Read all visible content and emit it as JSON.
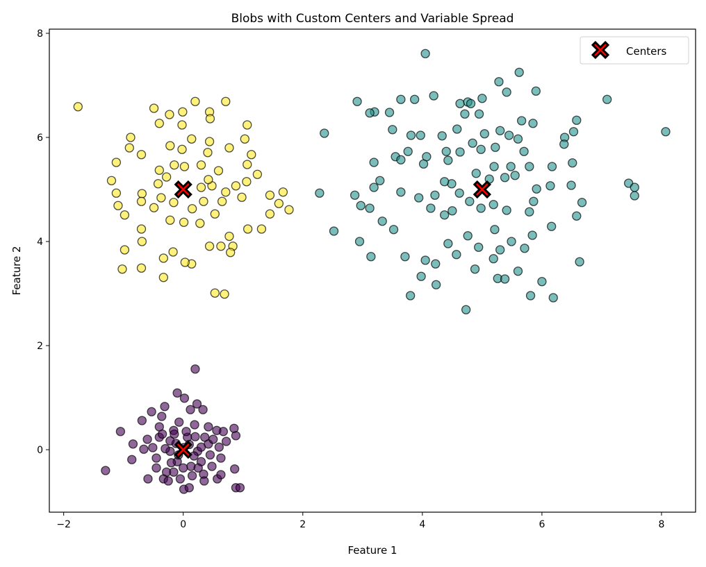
{
  "chart_data": {
    "type": "scatter",
    "title": "Blobs with Custom Centers and Variable Spread",
    "xlabel": "Feature 1",
    "ylabel": "Feature 2",
    "xlim": [
      -2.24,
      8.57
    ],
    "ylim": [
      -1.2,
      8.08
    ],
    "xticks": [
      -2,
      0,
      2,
      4,
      6,
      8
    ],
    "yticks": [
      0,
      2,
      4,
      6,
      8
    ],
    "grid": false,
    "legend": {
      "placement": "top-right",
      "entries": [
        "Centers"
      ]
    },
    "centers": {
      "name": "Centers",
      "color": "#ff0000",
      "edge": "#000000",
      "marker": "X",
      "points": [
        [
          0,
          0
        ],
        [
          5,
          5
        ],
        [
          0,
          5
        ]
      ]
    },
    "clusters": [
      {
        "color": "#440154",
        "points": [
          [
            0.2,
            1.55
          ],
          [
            -0.1,
            1.09
          ],
          [
            0.02,
            0.99
          ],
          [
            -0.31,
            0.83
          ],
          [
            0.23,
            0.88
          ],
          [
            0.12,
            0.77
          ],
          [
            0.33,
            0.77
          ],
          [
            -1.05,
            0.35
          ],
          [
            -0.69,
            0.56
          ],
          [
            -0.53,
            0.73
          ],
          [
            -0.36,
            0.64
          ],
          [
            -1.3,
            -0.4
          ],
          [
            -0.84,
            0.11
          ],
          [
            -0.86,
            -0.19
          ],
          [
            -0.66,
            0.01
          ],
          [
            -0.59,
            -0.56
          ],
          [
            -0.33,
            -0.56
          ],
          [
            0.01,
            -0.76
          ],
          [
            0.1,
            -0.73
          ],
          [
            0.34,
            -0.47
          ],
          [
            0.57,
            -0.56
          ],
          [
            0.63,
            -0.48
          ],
          [
            0.86,
            -0.37
          ],
          [
            0.88,
            -0.73
          ],
          [
            0.95,
            -0.73
          ],
          [
            0.85,
            0.41
          ],
          [
            0.88,
            0.27
          ],
          [
            0.72,
            0.16
          ],
          [
            0.67,
            0.35
          ],
          [
            0.56,
            0.37
          ],
          [
            -0.16,
            0.37
          ],
          [
            -0.4,
            0.24
          ],
          [
            -0.45,
            -0.16
          ],
          [
            -0.28,
            -0.43
          ],
          [
            0.3,
            -0.23
          ],
          [
            0.42,
            0.11
          ],
          [
            0.19,
            0.48
          ],
          [
            -0.07,
            0.53
          ],
          [
            -0.22,
            -0.03
          ],
          [
            0.24,
            -0.03
          ],
          [
            0.07,
            0.24
          ],
          [
            -0.1,
            -0.23
          ],
          [
            0.13,
            -0.32
          ],
          [
            0.42,
            0.44
          ],
          [
            -0.4,
            0.44
          ],
          [
            -0.05,
            -0.56
          ],
          [
            0.48,
            -0.32
          ],
          [
            -0.51,
            0.04
          ],
          [
            0.63,
            -0.16
          ],
          [
            -0.22,
            0.17
          ],
          [
            0.36,
            0.24
          ],
          [
            0.01,
            0.04
          ],
          [
            -0.16,
            -0.43
          ],
          [
            0.1,
            0.1
          ],
          [
            -0.12,
            0.12
          ],
          [
            0.18,
            -0.12
          ],
          [
            -0.08,
            -0.1
          ],
          [
            0.3,
            0.05
          ],
          [
            -0.3,
            0.02
          ],
          [
            0.05,
            0.35
          ],
          [
            0.0,
            -0.35
          ],
          [
            0.2,
            0.25
          ],
          [
            -0.2,
            -0.25
          ],
          [
            0.25,
            -0.35
          ],
          [
            -0.35,
            0.3
          ],
          [
            0.45,
            -0.1
          ],
          [
            -0.45,
            -0.35
          ],
          [
            0.15,
            -0.5
          ],
          [
            -0.15,
            0.3
          ],
          [
            0.5,
            0.2
          ],
          [
            -0.6,
            0.2
          ],
          [
            0.6,
            0.05
          ],
          [
            -0.25,
            -0.6
          ],
          [
            0.35,
            -0.6
          ]
        ]
      },
      {
        "color": "#21918c",
        "points": [
          [
            4.05,
            7.61
          ],
          [
            5.62,
            7.25
          ],
          [
            5.28,
            7.07
          ],
          [
            5.41,
            6.87
          ],
          [
            5.9,
            6.89
          ],
          [
            2.91,
            6.69
          ],
          [
            3.64,
            6.73
          ],
          [
            3.87,
            6.73
          ],
          [
            4.19,
            6.8
          ],
          [
            4.63,
            6.65
          ],
          [
            4.76,
            6.68
          ],
          [
            5.0,
            6.75
          ],
          [
            4.81,
            6.65
          ],
          [
            7.09,
            6.73
          ],
          [
            3.2,
            6.49
          ],
          [
            3.45,
            6.48
          ],
          [
            3.5,
            6.15
          ],
          [
            3.12,
            6.47
          ],
          [
            2.36,
            6.08
          ],
          [
            4.71,
            6.45
          ],
          [
            4.95,
            6.45
          ],
          [
            4.58,
            6.16
          ],
          [
            5.66,
            6.32
          ],
          [
            5.85,
            6.27
          ],
          [
            6.58,
            6.33
          ],
          [
            6.53,
            6.11
          ],
          [
            6.38,
            6.0
          ],
          [
            6.37,
            5.87
          ],
          [
            3.81,
            6.04
          ],
          [
            3.97,
            6.04
          ],
          [
            4.33,
            6.03
          ],
          [
            5.3,
            6.13
          ],
          [
            5.45,
            6.04
          ],
          [
            5.6,
            5.97
          ],
          [
            5.7,
            5.73
          ],
          [
            5.04,
            6.07
          ],
          [
            4.84,
            5.89
          ],
          [
            4.98,
            5.77
          ],
          [
            3.76,
            5.73
          ],
          [
            3.55,
            5.63
          ],
          [
            3.19,
            5.52
          ],
          [
            3.64,
            5.57
          ],
          [
            4.07,
            5.63
          ],
          [
            4.02,
            5.49
          ],
          [
            4.4,
            5.73
          ],
          [
            4.63,
            5.72
          ],
          [
            4.43,
            5.56
          ],
          [
            5.22,
            5.81
          ],
          [
            5.48,
            5.44
          ],
          [
            5.55,
            5.27
          ],
          [
            5.79,
            5.44
          ],
          [
            6.17,
            5.44
          ],
          [
            6.51,
            5.51
          ],
          [
            5.2,
            5.44
          ],
          [
            5.38,
            5.23
          ],
          [
            5.12,
            5.2
          ],
          [
            4.9,
            5.31
          ],
          [
            3.29,
            5.17
          ],
          [
            3.19,
            5.04
          ],
          [
            2.28,
            4.93
          ],
          [
            2.87,
            4.89
          ],
          [
            2.97,
            4.69
          ],
          [
            3.12,
            4.64
          ],
          [
            3.64,
            4.95
          ],
          [
            3.94,
            4.84
          ],
          [
            4.14,
            4.64
          ],
          [
            4.49,
            5.11
          ],
          [
            4.21,
            4.89
          ],
          [
            4.37,
            5.15
          ],
          [
            4.37,
            4.51
          ],
          [
            4.5,
            4.59
          ],
          [
            4.62,
            4.93
          ],
          [
            4.79,
            4.77
          ],
          [
            4.98,
            4.64
          ],
          [
            5.19,
            4.71
          ],
          [
            5.41,
            4.6
          ],
          [
            5.79,
            4.57
          ],
          [
            5.86,
            4.77
          ],
          [
            5.91,
            5.01
          ],
          [
            6.14,
            5.07
          ],
          [
            6.49,
            5.08
          ],
          [
            6.67,
            4.75
          ],
          [
            6.58,
            4.49
          ],
          [
            7.45,
            5.12
          ],
          [
            7.55,
            5.04
          ],
          [
            7.55,
            4.88
          ],
          [
            8.07,
            6.11
          ],
          [
            2.52,
            4.2
          ],
          [
            2.95,
            4.0
          ],
          [
            3.33,
            4.39
          ],
          [
            3.52,
            4.23
          ],
          [
            3.14,
            3.71
          ],
          [
            3.71,
            3.71
          ],
          [
            3.98,
            3.33
          ],
          [
            4.23,
            3.17
          ],
          [
            3.8,
            2.96
          ],
          [
            4.73,
            2.69
          ],
          [
            5.26,
            3.29
          ],
          [
            5.38,
            3.28
          ],
          [
            5.81,
            2.96
          ],
          [
            6.19,
            2.92
          ],
          [
            6.0,
            3.23
          ],
          [
            5.6,
            3.43
          ],
          [
            4.22,
            3.57
          ],
          [
            4.57,
            3.75
          ],
          [
            4.94,
            3.89
          ],
          [
            5.19,
            3.67
          ],
          [
            5.3,
            3.84
          ],
          [
            5.71,
            3.87
          ],
          [
            4.43,
            3.96
          ],
          [
            4.76,
            4.11
          ],
          [
            5.21,
            4.23
          ],
          [
            5.49,
            4.0
          ],
          [
            5.84,
            4.12
          ],
          [
            6.16,
            4.29
          ],
          [
            6.63,
            3.61
          ],
          [
            4.88,
            3.47
          ],
          [
            4.05,
            3.64
          ]
        ]
      },
      {
        "color": "#fde725",
        "points": [
          [
            -1.76,
            6.59
          ],
          [
            -0.49,
            6.56
          ],
          [
            -0.01,
            6.49
          ],
          [
            0.71,
            6.69
          ],
          [
            0.2,
            6.69
          ],
          [
            -0.23,
            6.44
          ],
          [
            0.44,
            6.49
          ],
          [
            0.45,
            6.36
          ],
          [
            1.07,
            6.24
          ],
          [
            -0.4,
            6.27
          ],
          [
            -0.02,
            6.24
          ],
          [
            -0.88,
            6.0
          ],
          [
            -1.12,
            5.52
          ],
          [
            -0.9,
            5.8
          ],
          [
            -0.7,
            5.67
          ],
          [
            -1.2,
            5.17
          ],
          [
            -1.12,
            4.93
          ],
          [
            -1.09,
            4.69
          ],
          [
            -0.98,
            4.51
          ],
          [
            -0.69,
            4.92
          ],
          [
            -0.7,
            4.77
          ],
          [
            -0.7,
            4.24
          ],
          [
            -0.69,
            4.0
          ],
          [
            -0.98,
            3.84
          ],
          [
            -1.02,
            3.47
          ],
          [
            -0.7,
            3.49
          ],
          [
            -0.33,
            3.31
          ],
          [
            -0.33,
            3.68
          ],
          [
            -0.17,
            3.8
          ],
          [
            0.14,
            3.57
          ],
          [
            0.03,
            3.6
          ],
          [
            0.44,
            3.91
          ],
          [
            0.63,
            3.91
          ],
          [
            0.83,
            3.91
          ],
          [
            0.79,
            3.79
          ],
          [
            0.77,
            4.1
          ],
          [
            0.53,
            3.01
          ],
          [
            0.69,
            2.99
          ],
          [
            1.08,
            4.24
          ],
          [
            1.31,
            4.24
          ],
          [
            1.45,
            4.53
          ],
          [
            1.6,
            4.73
          ],
          [
            1.77,
            4.61
          ],
          [
            1.67,
            4.95
          ],
          [
            1.45,
            4.89
          ],
          [
            1.24,
            5.29
          ],
          [
            1.14,
            5.67
          ],
          [
            1.03,
            5.97
          ],
          [
            1.06,
            5.15
          ],
          [
            1.07,
            5.48
          ],
          [
            0.77,
            5.8
          ],
          [
            0.71,
            4.95
          ],
          [
            0.88,
            5.07
          ],
          [
            0.98,
            4.85
          ],
          [
            0.34,
            4.77
          ],
          [
            0.53,
            4.53
          ],
          [
            0.15,
            4.63
          ],
          [
            0.01,
            4.37
          ],
          [
            0.28,
            4.35
          ],
          [
            -0.22,
            4.41
          ],
          [
            -0.49,
            4.65
          ],
          [
            -0.37,
            4.84
          ],
          [
            -0.4,
            5.37
          ],
          [
            -0.15,
            5.47
          ],
          [
            0.02,
            5.44
          ],
          [
            -0.02,
            5.77
          ],
          [
            0.14,
            5.97
          ],
          [
            0.44,
            5.92
          ],
          [
            0.41,
            5.71
          ],
          [
            0.3,
            5.47
          ],
          [
            0.59,
            5.36
          ],
          [
            0.48,
            5.07
          ],
          [
            -0.22,
            5.84
          ],
          [
            -0.42,
            5.11
          ],
          [
            -0.16,
            4.75
          ],
          [
            0.3,
            5.04
          ],
          [
            0.65,
            4.77
          ],
          [
            0.42,
            5.19
          ],
          [
            -0.28,
            5.24
          ]
        ]
      }
    ]
  }
}
